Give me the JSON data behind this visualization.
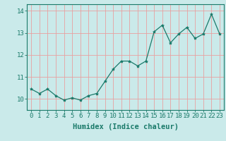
{
  "x": [
    0,
    1,
    2,
    3,
    4,
    5,
    6,
    7,
    8,
    9,
    10,
    11,
    12,
    13,
    14,
    15,
    16,
    17,
    18,
    19,
    20,
    21,
    22,
    23
  ],
  "y": [
    10.45,
    10.25,
    10.45,
    10.15,
    9.95,
    10.05,
    9.95,
    10.15,
    10.25,
    10.8,
    11.35,
    11.72,
    11.72,
    11.5,
    11.72,
    13.05,
    13.35,
    12.55,
    12.95,
    13.25,
    12.75,
    12.95,
    13.85,
    12.95
  ],
  "line_color": "#1a7a6a",
  "marker": "*",
  "marker_size": 3,
  "bg_color": "#caeaea",
  "grid_color": "#e8a0a0",
  "xlabel": "Humidex (Indice chaleur)",
  "xlabel_fontsize": 7.5,
  "tick_fontsize": 6.5,
  "xlim": [
    -0.5,
    23.5
  ],
  "ylim": [
    9.5,
    14.3
  ],
  "yticks": [
    10,
    11,
    12,
    13,
    14
  ],
  "xticks": [
    0,
    1,
    2,
    3,
    4,
    5,
    6,
    7,
    8,
    9,
    10,
    11,
    12,
    13,
    14,
    15,
    16,
    17,
    18,
    19,
    20,
    21,
    22,
    23
  ]
}
